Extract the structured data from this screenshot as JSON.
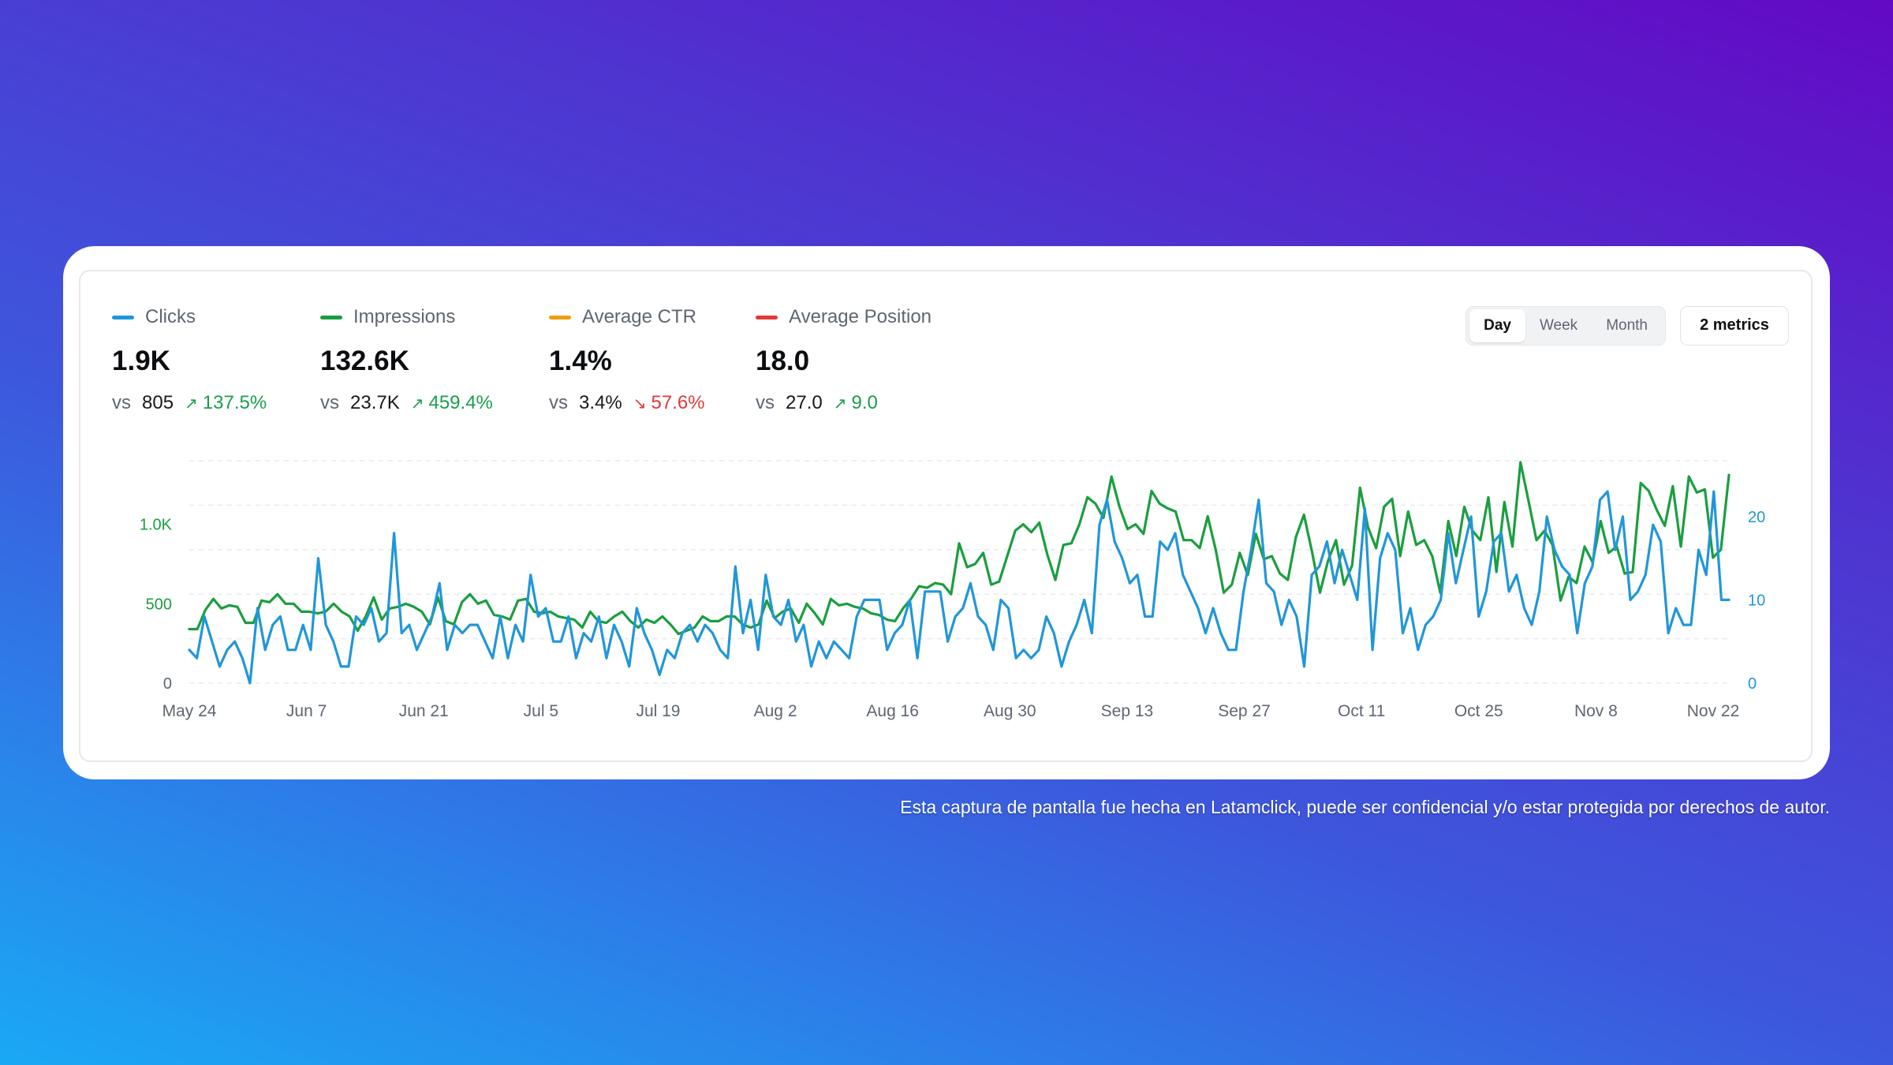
{
  "metrics": [
    {
      "name": "Clicks",
      "color": "#2196d8",
      "value": "1.9K",
      "vs": "vs",
      "previous": "805",
      "delta": "137.5%",
      "trend": "up",
      "trend_color": "#1a9e4b"
    },
    {
      "name": "Impressions",
      "color": "#1a9e3f",
      "value": "132.6K",
      "vs": "vs",
      "previous": "23.7K",
      "delta": "459.4%",
      "trend": "up",
      "trend_color": "#1a9e4b"
    },
    {
      "name": "Average CTR",
      "color": "#f29d12",
      "value": "1.4%",
      "vs": "vs",
      "previous": "3.4%",
      "delta": "57.6%",
      "trend": "down",
      "trend_color": "#e03a3a"
    },
    {
      "name": "Average Position",
      "color": "#e03a3a",
      "value": "18.0",
      "vs": "vs",
      "previous": "27.0",
      "delta": "9.0",
      "trend": "up",
      "trend_color": "#1a9e4b"
    }
  ],
  "period_toggle": {
    "options": [
      "Day",
      "Week",
      "Month"
    ],
    "selected": "Day"
  },
  "metrics_button": "2 metrics",
  "footnote": "Esta captura de pantalla fue hecha en Latamclick, puede ser confidencial y/o estar protegida por derechos de autor.",
  "chart_data": {
    "type": "line",
    "x_labels": [
      "May 24",
      "Jun 7",
      "Jun 21",
      "Jul 5",
      "Jul 19",
      "Aug 2",
      "Aug 16",
      "Aug 30",
      "Sep 13",
      "Sep 27",
      "Oct 11",
      "Oct 25",
      "Nov 8",
      "Nov 22"
    ],
    "y_left": {
      "ticks": [
        "0",
        "500",
        "1.0K"
      ],
      "tick_values": [
        0,
        500,
        1000
      ],
      "range": [
        0,
        1400
      ],
      "color": "#1a9e3f"
    },
    "y_right": {
      "ticks": [
        "0",
        "10",
        "20"
      ],
      "tick_values": [
        0,
        10,
        20
      ],
      "range": [
        0,
        26.7
      ],
      "color": "#2196d8"
    },
    "grid": "dashed horizontal",
    "series": [
      {
        "name": "Impressions",
        "axis": "left",
        "color": "#1a9e3f",
        "values": [
          340,
          340,
          460,
          530,
          470,
          490,
          480,
          380,
          380,
          520,
          510,
          560,
          500,
          500,
          450,
          450,
          440,
          450,
          500,
          450,
          420,
          330,
          420,
          540,
          400,
          470,
          480,
          500,
          480,
          450,
          370,
          540,
          390,
          370,
          510,
          560,
          500,
          520,
          430,
          420,
          400,
          520,
          530,
          450,
          440,
          450,
          420,
          410,
          400,
          350,
          450,
          390,
          380,
          420,
          450,
          390,
          350,
          400,
          380,
          420,
          370,
          310,
          330,
          350,
          420,
          390,
          390,
          420,
          420,
          370,
          350,
          370,
          520,
          410,
          450,
          470,
          380,
          500,
          440,
          370,
          530,
          490,
          500,
          480,
          470,
          440,
          430,
          400,
          390,
          470,
          530,
          610,
          600,
          630,
          620,
          560,
          880,
          730,
          750,
          820,
          620,
          640,
          800,
          960,
          1000,
          950,
          1010,
          810,
          650,
          870,
          880,
          1000,
          1170,
          1130,
          1040,
          1300,
          1110,
          970,
          1000,
          940,
          1210,
          1130,
          1100,
          1080,
          900,
          900,
          850,
          1050,
          840,
          570,
          620,
          820,
          680,
          940,
          780,
          800,
          690,
          650,
          920,
          1060,
          830,
          570,
          770,
          900,
          620,
          740,
          1230,
          980,
          850,
          1110,
          1160,
          800,
          1080,
          870,
          900,
          800,
          570,
          1020,
          800,
          1110,
          960,
          900,
          1170,
          700,
          1140,
          860,
          1390,
          1150,
          900,
          960,
          870,
          520,
          670,
          630,
          860,
          760,
          1020,
          820,
          860,
          690,
          700,
          1260,
          1210,
          1090,
          990,
          1240,
          860,
          1300,
          1200,
          1220,
          790,
          840,
          1310
        ]
      },
      {
        "name": "Clicks",
        "axis": "right",
        "color": "#2196d8",
        "values": [
          4,
          3,
          8,
          5,
          2,
          4,
          5,
          3,
          0,
          9,
          4,
          7,
          8,
          4,
          4,
          7,
          4,
          15,
          7,
          5,
          2,
          2,
          8,
          7,
          9,
          5,
          6,
          18,
          6,
          7,
          4,
          6,
          8,
          12,
          4,
          7,
          6,
          7,
          7,
          5,
          3,
          8,
          3,
          7,
          5,
          13,
          8,
          9,
          5,
          5,
          8,
          3,
          6,
          5,
          8,
          3,
          7,
          5,
          2,
          9,
          6,
          4,
          1,
          4,
          3,
          6,
          7,
          5,
          7,
          6,
          4,
          3,
          14,
          6,
          10,
          4,
          13,
          8,
          7,
          10,
          5,
          7,
          2,
          5,
          3,
          5,
          4,
          3,
          8,
          10,
          10,
          10,
          4,
          6,
          7,
          10,
          3,
          11,
          11,
          11,
          5,
          8,
          9,
          12,
          8,
          7,
          4,
          10,
          9,
          3,
          4,
          3,
          4,
          8,
          6,
          2,
          5,
          7,
          10,
          6,
          19,
          22,
          17,
          15,
          12,
          13,
          8,
          8,
          17,
          16,
          18,
          13,
          11,
          9,
          6,
          9,
          6,
          4,
          4,
          11,
          16,
          22,
          12,
          11,
          7,
          10,
          8,
          2,
          13,
          14,
          17,
          12,
          16,
          13,
          10,
          21,
          4,
          15,
          18,
          16,
          6,
          9,
          4,
          7,
          8,
          10,
          18,
          12,
          16,
          20,
          8,
          11,
          17,
          18,
          11,
          13,
          9,
          7,
          11,
          20,
          16,
          14,
          13,
          6,
          12,
          14,
          22,
          23,
          16,
          20,
          10,
          11,
          13,
          19,
          17,
          6,
          9,
          7,
          7,
          16,
          13,
          23,
          10,
          10
        ]
      }
    ]
  }
}
